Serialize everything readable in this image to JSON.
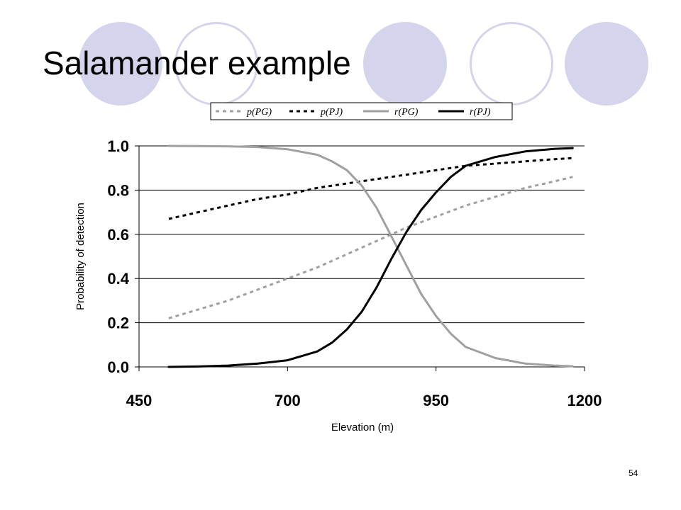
{
  "slide": {
    "title": "Salamander example",
    "page_number": "54",
    "accent_color": "#d4d4ec"
  },
  "chart_data": {
    "type": "line",
    "title": "",
    "xlabel": "Elevation (m)",
    "ylabel": "Probability of detection",
    "xlim": [
      450,
      1200
    ],
    "ylim": [
      0,
      1
    ],
    "x_ticks": [
      "450",
      "700",
      "950",
      "1200"
    ],
    "y_ticks": [
      "0.0",
      "0.2",
      "0.4",
      "0.6",
      "0.8",
      "1.0"
    ],
    "grid": "horizontal",
    "legend_position": "top",
    "series": [
      {
        "name": "p(PG)",
        "style": "dashed",
        "color": "#a0a0a0",
        "x": [
          500,
          550,
          600,
          650,
          700,
          750,
          800,
          850,
          900,
          950,
          1000,
          1050,
          1100,
          1150,
          1180
        ],
        "y": [
          0.22,
          0.26,
          0.3,
          0.35,
          0.4,
          0.45,
          0.51,
          0.57,
          0.63,
          0.68,
          0.73,
          0.77,
          0.81,
          0.84,
          0.86
        ]
      },
      {
        "name": "p(PJ)",
        "style": "dashed",
        "color": "#000000",
        "x": [
          500,
          550,
          600,
          650,
          700,
          750,
          800,
          850,
          900,
          950,
          1000,
          1050,
          1100,
          1150,
          1180
        ],
        "y": [
          0.67,
          0.7,
          0.73,
          0.76,
          0.78,
          0.81,
          0.83,
          0.85,
          0.87,
          0.89,
          0.91,
          0.92,
          0.93,
          0.94,
          0.945
        ]
      },
      {
        "name": "r(PG)",
        "style": "solid",
        "color": "#a0a0a0",
        "x": [
          500,
          550,
          600,
          650,
          700,
          750,
          775,
          800,
          825,
          850,
          875,
          900,
          925,
          950,
          975,
          1000,
          1050,
          1100,
          1150,
          1180
        ],
        "y": [
          1.0,
          0.999,
          0.998,
          0.995,
          0.985,
          0.96,
          0.93,
          0.89,
          0.82,
          0.72,
          0.59,
          0.46,
          0.33,
          0.23,
          0.15,
          0.09,
          0.04,
          0.015,
          0.006,
          0.003
        ]
      },
      {
        "name": "r(PJ)",
        "style": "solid",
        "color": "#000000",
        "x": [
          500,
          550,
          600,
          650,
          700,
          750,
          775,
          800,
          825,
          850,
          875,
          900,
          925,
          950,
          975,
          1000,
          1050,
          1100,
          1150,
          1180
        ],
        "y": [
          0.0,
          0.002,
          0.006,
          0.015,
          0.03,
          0.07,
          0.11,
          0.17,
          0.25,
          0.36,
          0.49,
          0.61,
          0.71,
          0.79,
          0.86,
          0.91,
          0.95,
          0.975,
          0.987,
          0.99
        ]
      }
    ]
  }
}
